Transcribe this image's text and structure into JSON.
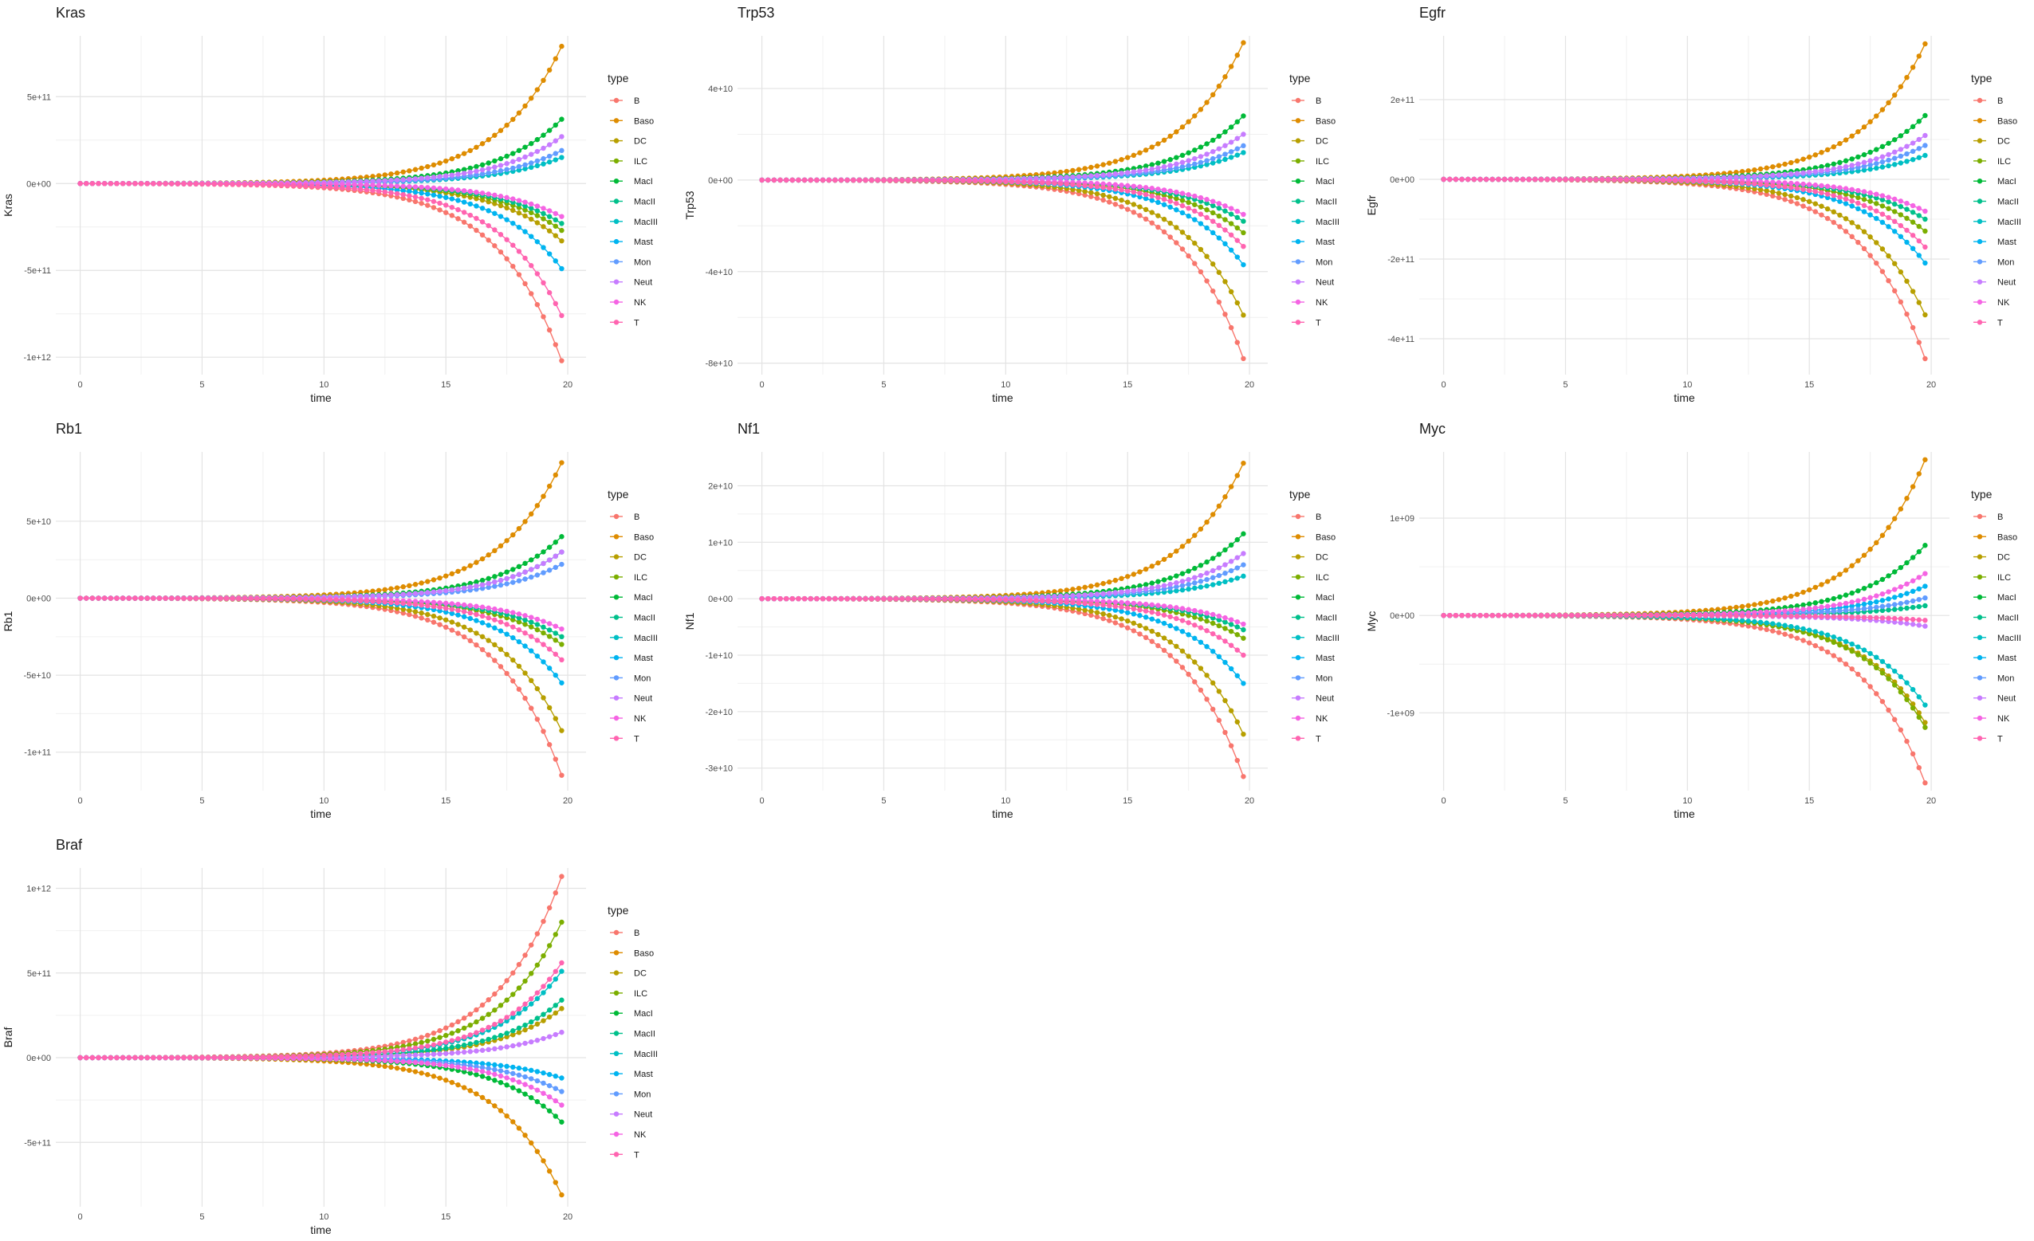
{
  "legend": {
    "title": "type",
    "labels": [
      "B",
      "Baso",
      "DC",
      "ILC",
      "MacI",
      "MacII",
      "MacIII",
      "Mast",
      "Mon",
      "Neut",
      "NK",
      "T"
    ],
    "colors": [
      "#F8766D",
      "#DE8C00",
      "#B79F00",
      "#7CAE00",
      "#00BA38",
      "#00C08B",
      "#00BFC4",
      "#00B4F0",
      "#619CFF",
      "#C77CFF",
      "#F564E3",
      "#FF64B0"
    ]
  },
  "chart_data": [
    {
      "type": "line",
      "title": "Kras",
      "xlabel": "time",
      "ylabel": "Kras",
      "xlim": [
        -1,
        20.75
      ],
      "ylim": [
        -1100000000000.0,
        850000000000.0
      ],
      "x_ticks": [
        0,
        5,
        10,
        15,
        20
      ],
      "x_tick_labels": [
        "0",
        "5",
        "10",
        "15",
        "20"
      ],
      "y_ticks": [
        -1000000000000.0,
        -500000000000.0,
        0,
        500000000000.0
      ],
      "y_tick_labels": [
        "-1e+12",
        "-5e+11",
        "0e+00",
        "5e+11"
      ],
      "final_values": [
        -1020000000000.0,
        790000000000.0,
        -330000000000.0,
        -270000000000.0,
        370000000000.0,
        -230000000000.0,
        150000000000.0,
        -490000000000.0,
        190000000000.0,
        270000000000.0,
        -190000000000.0,
        -760000000000.0
      ]
    },
    {
      "type": "line",
      "title": "Trp53",
      "xlabel": "time",
      "ylabel": "Trp53",
      "xlim": [
        -1,
        20.75
      ],
      "ylim": [
        -85000000000.0,
        63000000000.0
      ],
      "x_ticks": [
        0,
        5,
        10,
        15,
        20
      ],
      "x_tick_labels": [
        "0",
        "5",
        "10",
        "15",
        "20"
      ],
      "y_ticks": [
        -80000000000.0,
        -40000000000.0,
        0,
        40000000000.0
      ],
      "y_tick_labels": [
        "-8e+10",
        "-4e+10",
        "0e+00",
        "4e+10"
      ],
      "final_values": [
        -78000000000.0,
        60000000000.0,
        -59000000000.0,
        -23000000000.0,
        28000000000.0,
        -18000000000.0,
        12000000000.0,
        -37000000000.0,
        15000000000.0,
        20000000000.0,
        -15000000000.0,
        -29000000000.0
      ]
    },
    {
      "type": "line",
      "title": "Egfr",
      "xlabel": "time",
      "ylabel": "Egfr",
      "xlim": [
        -1,
        20.75
      ],
      "ylim": [
        -490000000000.0,
        360000000000.0
      ],
      "x_ticks": [
        0,
        5,
        10,
        15,
        20
      ],
      "x_tick_labels": [
        "0",
        "5",
        "10",
        "15",
        "20"
      ],
      "y_ticks": [
        -400000000000.0,
        -200000000000.0,
        0,
        200000000000.0
      ],
      "y_tick_labels": [
        "-4e+11",
        "-2e+11",
        "0e+00",
        "2e+11"
      ],
      "final_values": [
        -450000000000.0,
        340000000000.0,
        -340000000000.0,
        -130000000000.0,
        160000000000.0,
        -100000000000.0,
        60000000000.0,
        -210000000000.0,
        85000000000.0,
        110000000000.0,
        -80000000000.0,
        -170000000000.0
      ]
    },
    {
      "type": "line",
      "title": "Rb1",
      "xlabel": "time",
      "ylabel": "Rb1",
      "xlim": [
        -1,
        20.75
      ],
      "ylim": [
        -125000000000.0,
        95000000000.0
      ],
      "x_ticks": [
        0,
        5,
        10,
        15,
        20
      ],
      "x_tick_labels": [
        "0",
        "5",
        "10",
        "15",
        "20"
      ],
      "y_ticks": [
        -100000000000.0,
        -50000000000.0,
        0,
        50000000000.0
      ],
      "y_tick_labels": [
        "-1e+11",
        "-5e+10",
        "0e+00",
        "5e+10"
      ],
      "final_values": [
        -115000000000.0,
        88000000000.0,
        -86000000000.0,
        -30000000000.0,
        40000000000.0,
        -25000000000.0,
        30000000000.0,
        -55000000000.0,
        22000000000.0,
        30000000000.0,
        -20000000000.0,
        -40000000000.0
      ]
    },
    {
      "type": "line",
      "title": "Nf1",
      "xlabel": "time",
      "ylabel": "Nf1",
      "xlim": [
        -1,
        20.75
      ],
      "ylim": [
        -34000000000.0,
        26000000000.0
      ],
      "x_ticks": [
        0,
        5,
        10,
        15,
        20
      ],
      "x_tick_labels": [
        "0",
        "5",
        "10",
        "15",
        "20"
      ],
      "y_ticks": [
        -30000000000.0,
        -20000000000.0,
        -10000000000.0,
        0,
        10000000000.0,
        20000000000.0
      ],
      "y_tick_labels": [
        "-3e+10",
        "-2e+10",
        "-1e+10",
        "0e+00",
        "1e+10",
        "2e+10"
      ],
      "final_values": [
        -31500000000.0,
        24000000000.0,
        -24000000000.0,
        -7000000000.0,
        11500000000.0,
        -5500000000.0,
        4000000000.0,
        -15000000000.0,
        6000000000.0,
        8000000000.0,
        -4500000000.0,
        -10000000000.0
      ]
    },
    {
      "type": "line",
      "title": "Myc",
      "xlabel": "time",
      "ylabel": "Myc",
      "xlim": [
        -1,
        20.75
      ],
      "ylim": [
        -1800000000.0,
        1680000000.0
      ],
      "x_ticks": [
        0,
        5,
        10,
        15,
        20
      ],
      "x_tick_labels": [
        "0",
        "5",
        "10",
        "15",
        "20"
      ],
      "y_ticks": [
        -1000000000.0,
        0,
        1000000000.0
      ],
      "y_tick_labels": [
        "-1e+09",
        "0e+00",
        "1e+09"
      ],
      "final_values": [
        -1720000000.0,
        1600000000.0,
        -1100000000.0,
        -1150000000.0,
        720000000.0,
        100000000.0,
        -920000000.0,
        300000000.0,
        180000000.0,
        -110000000.0,
        430000000.0,
        -50000000.0
      ]
    },
    {
      "type": "line",
      "title": "Braf",
      "xlabel": "time",
      "ylabel": "Braf",
      "xlim": [
        -1,
        20.75
      ],
      "ylim": [
        -880000000000.0,
        1120000000000.0
      ],
      "x_ticks": [
        0,
        5,
        10,
        15,
        20
      ],
      "x_tick_labels": [
        "0",
        "5",
        "10",
        "15",
        "20"
      ],
      "y_ticks": [
        -500000000000.0,
        0,
        500000000000.0,
        1000000000000.0
      ],
      "y_tick_labels": [
        "-5e+11",
        "0e+00",
        "5e+11",
        "1e+12"
      ],
      "final_values": [
        1070000000000.0,
        -810000000000.0,
        290000000000.0,
        800000000000.0,
        -380000000000.0,
        340000000000.0,
        510000000000.0,
        -120000000000.0,
        -200000000000.0,
        150000000000.0,
        -280000000000.0,
        560000000000.0
      ]
    }
  ]
}
